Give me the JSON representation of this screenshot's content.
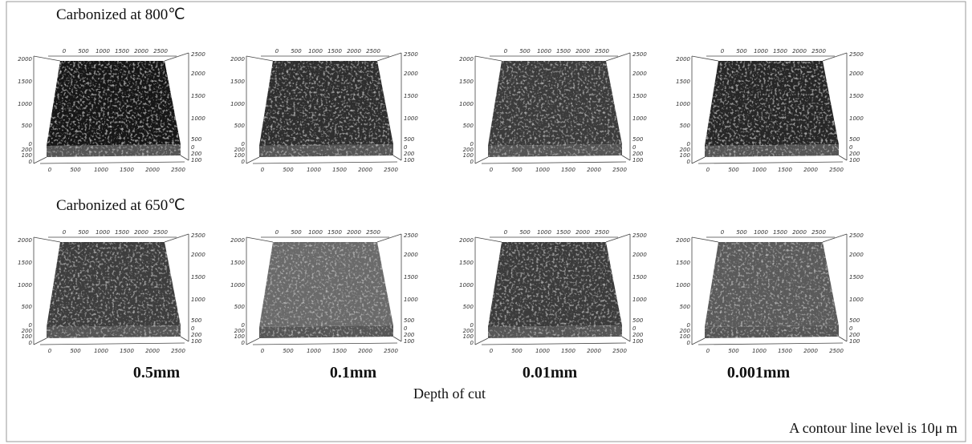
{
  "rows": [
    {
      "label": "Carbonized at 800℃"
    },
    {
      "label": "Carbonized at 650℃"
    }
  ],
  "columns": [
    "0.5mm",
    "0.1mm",
    "0.01mm",
    "0.001mm"
  ],
  "x_axis_label": "Depth of cut",
  "note": "A contour line level is 10μ m",
  "axis_ticks": {
    "top": [
      0,
      500,
      1000,
      1500,
      2000,
      2500
    ],
    "bottom": [
      0,
      500,
      1000,
      1500,
      2000,
      2500
    ],
    "left": [
      2000,
      1500,
      1000,
      500,
      0,
      200,
      100,
      0
    ],
    "right": [
      2500,
      2000,
      1500,
      1000,
      500,
      0,
      200,
      100
    ]
  }
}
